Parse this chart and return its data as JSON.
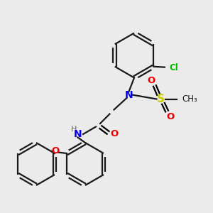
{
  "background_color": "#ebebeb",
  "bond_color": "#1a1a1a",
  "atom_colors": {
    "N": "#0000ee",
    "O": "#ee0000",
    "S": "#cccc00",
    "Cl": "#00bb00",
    "C": "#1a1a1a"
  },
  "figsize": [
    3.0,
    3.0
  ],
  "dpi": 100
}
